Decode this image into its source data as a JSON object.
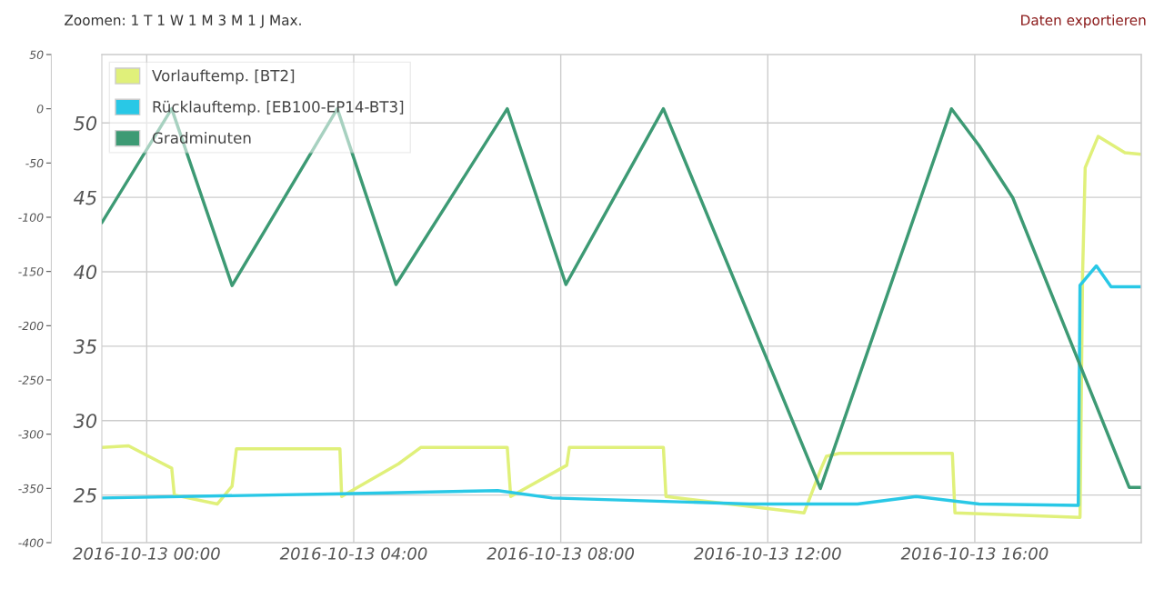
{
  "chart_data": {
    "type": "line",
    "annotations": [
      "Zoomen: 1 T 1 W 1 M 3 M 1 J Max.",
      "Daten exportieren"
    ],
    "xlim": [
      "2016-10-12T23:08",
      "2016-10-13T19:13"
    ],
    "xticks": [
      {
        "value": "2016-10-13T00:00",
        "label": "2016-10-13 00:00"
      },
      {
        "value": "2016-10-13T04:00",
        "label": "2016-10-13 04:00"
      },
      {
        "value": "2016-10-13T08:00",
        "label": "2016-10-13 08:00"
      },
      {
        "value": "2016-10-13T12:00",
        "label": "2016-10-13 12:00"
      },
      {
        "value": "2016-10-13T16:00",
        "label": "2016-10-13 16:00"
      }
    ],
    "ylim": [
      21.8,
      54.6
    ],
    "yticks": [
      25,
      30,
      35,
      40,
      45,
      50
    ],
    "y2lim": [
      -400,
      50
    ],
    "y2ticks": [
      -400,
      -350,
      -300,
      -250,
      -200,
      -150,
      -100,
      -50,
      0,
      50
    ],
    "grid": true,
    "legend": "top left",
    "marker": "none",
    "line_style": "solid",
    "series": [
      {
        "name": "Vorlauftemp. [BT2]",
        "color": "#e0f07a",
        "x": [
          "2016-10-12T23:08",
          "2016-10-12T23:39",
          "2016-10-13T00:29",
          "2016-10-13T00:32",
          "2016-10-13T01:22",
          "2016-10-13T01:39",
          "2016-10-13T01:44",
          "2016-10-13T03:44",
          "2016-10-13T03:46",
          "2016-10-13T04:52",
          "2016-10-13T05:18",
          "2016-10-13T06:58",
          "2016-10-13T07:02",
          "2016-10-13T08:07",
          "2016-10-13T08:10",
          "2016-10-13T09:59",
          "2016-10-13T10:02",
          "2016-10-13T12:42",
          "2016-10-13T13:02",
          "2016-10-13T13:08",
          "2016-10-13T13:23",
          "2016-10-13T15:34",
          "2016-10-13T15:37",
          "2016-10-13T18:02",
          "2016-10-13T18:05",
          "2016-10-13T18:08",
          "2016-10-13T18:23",
          "2016-10-13T18:54",
          "2016-10-13T19:13"
        ],
        "values": [
          28.2,
          28.3,
          26.8,
          25.0,
          24.4,
          25.6,
          28.1,
          28.1,
          24.9,
          27.1,
          28.2,
          28.2,
          24.9,
          27.0,
          28.2,
          28.2,
          24.9,
          23.8,
          26.8,
          27.6,
          27.8,
          27.8,
          23.8,
          23.5,
          39.9,
          47.0,
          49.1,
          48.0,
          47.9
        ]
      },
      {
        "name": "Rücklauftemp. [EB100-EP14-BT3]",
        "color": "#29c8e6",
        "x": [
          "2016-10-12T23:08",
          "2016-10-13T04:00",
          "2016-10-13T06:47",
          "2016-10-13T07:50",
          "2016-10-13T11:39",
          "2016-10-13T13:44",
          "2016-10-13T14:52",
          "2016-10-13T16:05",
          "2016-10-13T18:00",
          "2016-10-13T18:02",
          "2016-10-13T18:21",
          "2016-10-13T18:38",
          "2016-10-13T19:13"
        ],
        "values": [
          24.8,
          25.1,
          25.3,
          24.8,
          24.4,
          24.4,
          24.9,
          24.4,
          24.3,
          39.1,
          40.4,
          39.0,
          39.0
        ]
      },
      {
        "name": "Gradminuten",
        "color": "#3d9a74",
        "axis": "y2",
        "x": [
          "2016-10-12T23:08",
          "2016-10-13T00:29",
          "2016-10-13T01:39",
          "2016-10-13T03:41",
          "2016-10-13T04:49",
          "2016-10-13T06:58",
          "2016-10-13T08:06",
          "2016-10-13T09:59",
          "2016-10-13T13:01",
          "2016-10-13T15:33",
          "2016-10-13T16:05",
          "2016-10-13T16:44",
          "2016-10-13T18:59",
          "2016-10-13T19:13"
        ],
        "values": [
          -105,
          0,
          -163,
          0,
          -162,
          0,
          -162,
          0,
          -350,
          0,
          -34,
          -82,
          -349,
          -349
        ]
      }
    ]
  }
}
